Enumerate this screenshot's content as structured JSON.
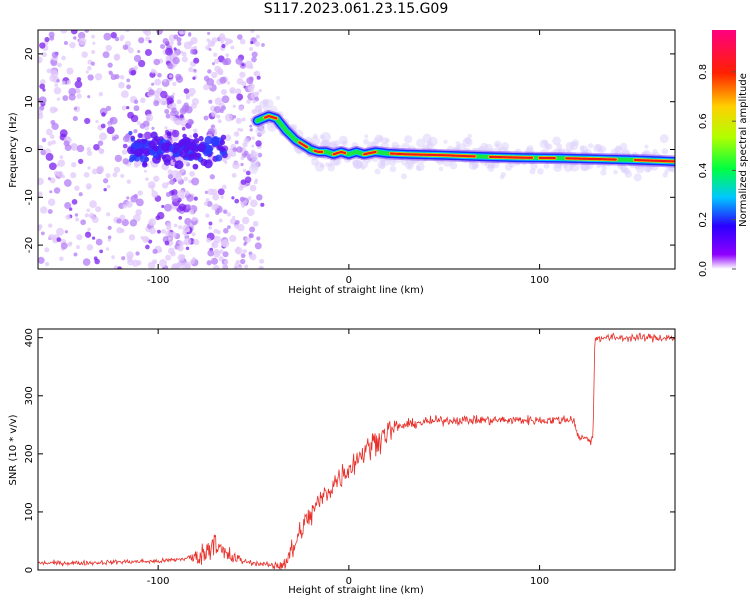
{
  "title": "S117.2023.061.23.15.G09",
  "chart_data": [
    {
      "type": "heatmap",
      "xlabel": "Height of straight line (km)",
      "ylabel": "Frequency (Hz)",
      "xlim": [
        -163,
        171
      ],
      "ylim": [
        -25,
        25
      ],
      "xticks": [
        -100,
        0,
        100
      ],
      "yticks": [
        -20,
        -10,
        0,
        10,
        20
      ],
      "colorbar": {
        "label": "Normalized spectral amplitude",
        "range": [
          0,
          0.97
        ],
        "ticks": [
          0.0,
          0.2,
          0.4,
          0.6,
          0.8
        ],
        "colormap": "rainbow (white-purple-blue-cyan-green-yellow-red-magenta)"
      },
      "ridge": {
        "x": [
          -48,
          -42,
          -38,
          -33,
          -28,
          -24,
          -20,
          -16,
          -12,
          -8,
          -4,
          0,
          4,
          8,
          14,
          20,
          30,
          50,
          70,
          90,
          110,
          130,
          150,
          171
        ],
        "y": [
          6.0,
          7.0,
          6.5,
          4.0,
          2.0,
          1.0,
          0.0,
          -0.5,
          -0.5,
          -1.0,
          -0.5,
          -1.0,
          -0.5,
          -1.0,
          -0.5,
          -0.8,
          -1.0,
          -1.2,
          -1.5,
          -1.7,
          -1.8,
          -2.0,
          -2.2,
          -2.5
        ]
      }
    },
    {
      "type": "line",
      "xlabel": "Height of straight line (km)",
      "ylabel": "SNR (10 * v/v)",
      "xlim": [
        -163,
        171
      ],
      "ylim": [
        0,
        415
      ],
      "xticks": [
        -100,
        0,
        100
      ],
      "yticks": [
        0,
        100,
        200,
        300,
        400
      ],
      "line_color": "#e8302a",
      "series": [
        {
          "x": [
            -163,
            -140,
            -120,
            -100,
            -90,
            -80,
            -75,
            -72,
            -70,
            -68,
            -65,
            -60,
            -55,
            -50,
            -45,
            -40,
            -35,
            -32,
            -30,
            -28,
            -25,
            -20,
            -15,
            -10,
            -5,
            0,
            5,
            10,
            15,
            20,
            25,
            30,
            40,
            50,
            60,
            70,
            80,
            90,
            100,
            110,
            118,
            120,
            125,
            128,
            129,
            130,
            140,
            150,
            160,
            171
          ],
          "y": [
            12,
            12,
            14,
            15,
            18,
            22,
            30,
            45,
            60,
            35,
            25,
            20,
            15,
            12,
            10,
            8,
            10,
            20,
            30,
            45,
            70,
            95,
            120,
            140,
            160,
            175,
            195,
            210,
            225,
            238,
            245,
            250,
            255,
            258,
            258,
            258,
            258,
            258,
            258,
            258,
            260,
            230,
            225,
            225,
            400,
            400,
            400,
            400,
            400,
            400
          ]
        }
      ]
    }
  ]
}
